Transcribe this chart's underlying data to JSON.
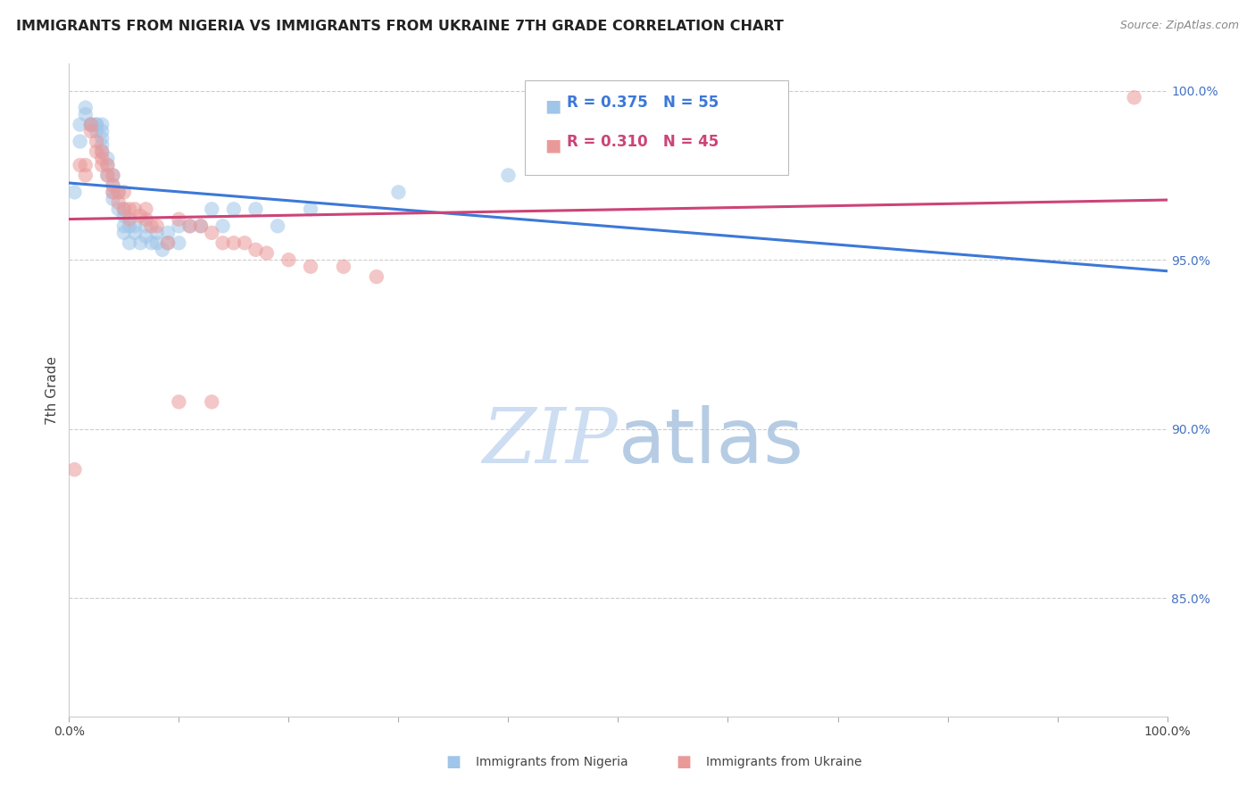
{
  "title": "IMMIGRANTS FROM NIGERIA VS IMMIGRANTS FROM UKRAINE 7TH GRADE CORRELATION CHART",
  "source": "Source: ZipAtlas.com",
  "ylabel": "7th Grade",
  "ylabel_right_ticks": [
    "100.0%",
    "95.0%",
    "90.0%",
    "85.0%"
  ],
  "ylabel_right_vals": [
    1.0,
    0.95,
    0.9,
    0.85
  ],
  "xmin": 0.0,
  "xmax": 1.0,
  "ymin": 0.815,
  "ymax": 1.008,
  "legend_r_nigeria": "R = 0.375",
  "legend_n_nigeria": "N = 55",
  "legend_r_ukraine": "R = 0.310",
  "legend_n_ukraine": "N = 45",
  "color_nigeria": "#9fc5e8",
  "color_ukraine": "#ea9999",
  "color_nigeria_line": "#3c78d8",
  "color_ukraine_line": "#cc4477",
  "nigeria_x": [
    0.005,
    0.01,
    0.01,
    0.015,
    0.015,
    0.02,
    0.02,
    0.02,
    0.025,
    0.025,
    0.025,
    0.03,
    0.03,
    0.03,
    0.03,
    0.03,
    0.035,
    0.035,
    0.035,
    0.04,
    0.04,
    0.04,
    0.04,
    0.045,
    0.045,
    0.05,
    0.05,
    0.05,
    0.05,
    0.055,
    0.055,
    0.06,
    0.06,
    0.065,
    0.07,
    0.07,
    0.075,
    0.08,
    0.08,
    0.085,
    0.09,
    0.09,
    0.1,
    0.1,
    0.11,
    0.12,
    0.13,
    0.14,
    0.15,
    0.17,
    0.19,
    0.22,
    0.3,
    0.4,
    0.5
  ],
  "nigeria_y": [
    0.97,
    0.99,
    0.985,
    0.995,
    0.993,
    0.99,
    0.99,
    0.99,
    0.99,
    0.99,
    0.988,
    0.99,
    0.988,
    0.986,
    0.984,
    0.982,
    0.98,
    0.978,
    0.975,
    0.975,
    0.972,
    0.97,
    0.968,
    0.97,
    0.965,
    0.965,
    0.963,
    0.96,
    0.958,
    0.96,
    0.955,
    0.96,
    0.958,
    0.955,
    0.96,
    0.957,
    0.955,
    0.958,
    0.955,
    0.953,
    0.958,
    0.955,
    0.96,
    0.955,
    0.96,
    0.96,
    0.965,
    0.96,
    0.965,
    0.965,
    0.96,
    0.965,
    0.97,
    0.975,
    0.985
  ],
  "ukraine_x": [
    0.005,
    0.01,
    0.015,
    0.015,
    0.02,
    0.02,
    0.025,
    0.025,
    0.03,
    0.03,
    0.03,
    0.035,
    0.035,
    0.04,
    0.04,
    0.04,
    0.045,
    0.045,
    0.05,
    0.05,
    0.055,
    0.055,
    0.06,
    0.065,
    0.07,
    0.07,
    0.075,
    0.08,
    0.09,
    0.1,
    0.11,
    0.12,
    0.13,
    0.14,
    0.15,
    0.16,
    0.17,
    0.18,
    0.2,
    0.22,
    0.25,
    0.28,
    0.1,
    0.13,
    0.97
  ],
  "ukraine_y": [
    0.888,
    0.978,
    0.978,
    0.975,
    0.99,
    0.988,
    0.985,
    0.982,
    0.982,
    0.98,
    0.978,
    0.978,
    0.975,
    0.975,
    0.972,
    0.97,
    0.97,
    0.967,
    0.97,
    0.965,
    0.965,
    0.962,
    0.965,
    0.963,
    0.965,
    0.962,
    0.96,
    0.96,
    0.955,
    0.962,
    0.96,
    0.96,
    0.958,
    0.955,
    0.955,
    0.955,
    0.953,
    0.952,
    0.95,
    0.948,
    0.948,
    0.945,
    0.908,
    0.908,
    0.998
  ],
  "watermark_zip": "ZIP",
  "watermark_atlas": "atlas"
}
